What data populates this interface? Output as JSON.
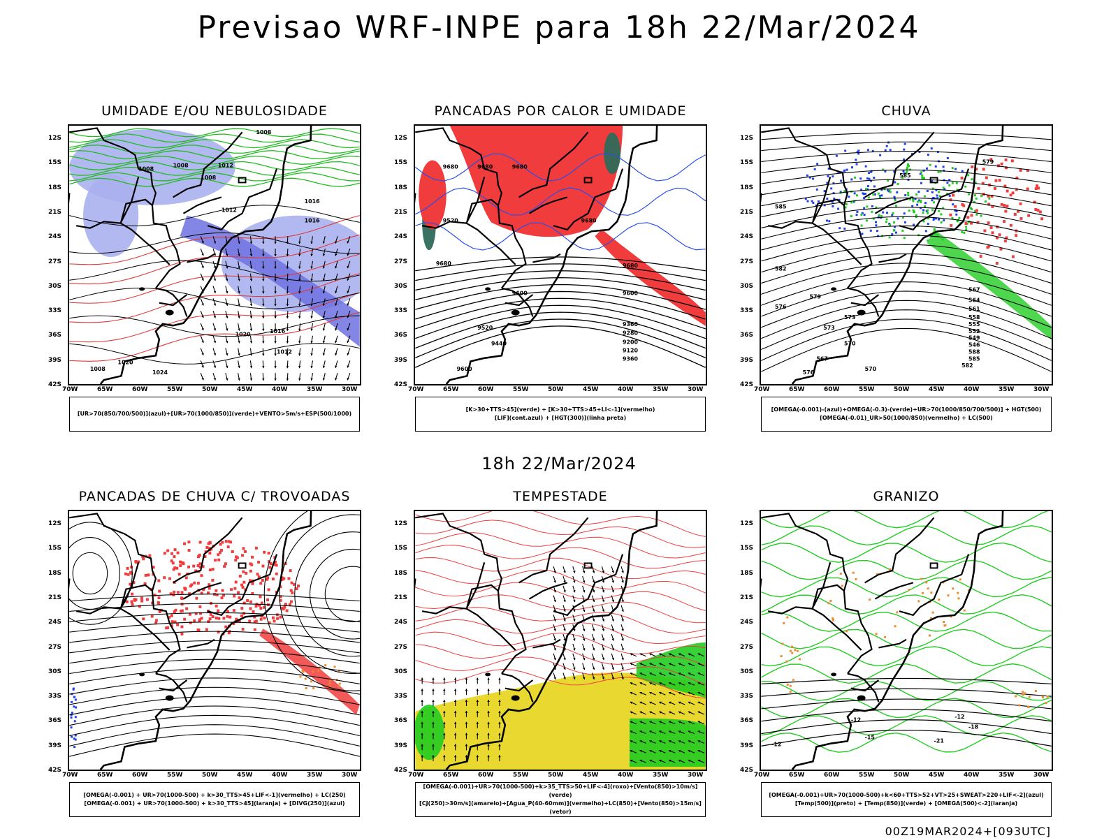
{
  "title": "Previsao WRF-INPE  para 18h 22/Mar/2024",
  "subtitle": "18h 22/Mar/2024",
  "footer": "00Z19MAR2024+[093UTC]",
  "axes": {
    "lat_labels": [
      "12S",
      "15S",
      "18S",
      "21S",
      "24S",
      "27S",
      "30S",
      "33S",
      "36S",
      "39S",
      "42S"
    ],
    "lon_labels": [
      "70W",
      "65W",
      "60W",
      "55W",
      "50W",
      "45W",
      "40W",
      "35W",
      "30W"
    ]
  },
  "panels": [
    {
      "id": "umidade",
      "title": "UMIDADE E/OU NEBULOSIDADE",
      "legend": [
        "[UR>70(850/700/500)](azul)+[UR>70(1000/850)](verde)+VENTO>5m/s+ESP(500/1000)"
      ],
      "contour_labels": [
        "1008",
        "1008",
        "1008",
        "1008",
        "1012",
        "1012",
        "1016",
        "1016",
        "1020",
        "1016",
        "1012",
        "1020",
        "1024",
        "1008"
      ],
      "colors": {
        "upper_humidity": "#aab0ee",
        "core": "#6d71e0",
        "low_humidity": "#22bb22",
        "thickness": "#e03a3a"
      }
    },
    {
      "id": "pancadas-calor",
      "title": "PANCADAS POR CALOR E UMIDADE",
      "legend": [
        "[K>30+TTS>45](verde) + [K>30+TTS>45+LI<-1](vermelho)",
        "[LIF](cont.azul) + [HGT(300)](linha preta)"
      ],
      "contour_labels": [
        "9680",
        "9680",
        "9680",
        "9680",
        "9680",
        "9600",
        "9600",
        "9520",
        "9440",
        "9360",
        "9280",
        "9200",
        "9120",
        "9360",
        "9600",
        "9520",
        "9680"
      ],
      "colors": {
        "unstable": "#f03c3c",
        "humid": "#2e6a5a",
        "lif": "#2a4ee8"
      }
    },
    {
      "id": "chuva",
      "title": "CHUVA",
      "legend": [
        "[OMEGA(-0.001)-(azul)+OMEGA(-0.3)-(verde)+UR>70(1000/850/700/500)] + HGT(500)",
        "[OMEGA(-0.01)_UR>50(1000/850)(vermelho) + LC(500)"
      ],
      "contour_labels": [
        "585",
        "585",
        "582",
        "579",
        "576",
        "573",
        "570",
        "567",
        "564",
        "561",
        "558",
        "555",
        "552",
        "549",
        "546",
        "588",
        "585",
        "582",
        "579",
        "576",
        "573",
        "570",
        "567"
      ],
      "colors": {
        "blue": "#2040e8",
        "green": "#22cc22",
        "red": "#f03c3c"
      }
    },
    {
      "id": "pancadas-trovoadas",
      "title": "PANCADAS DE CHUVA C/ TROVOADAS",
      "legend": [
        "[OMEGA(-0.001) + UR>70(1000-500) + k>30_TTS>45+LIF<-1](vermelho) + LC(250)",
        "[OMEGA(-0.001) + UR>70(1000-500) + k>30_TTS>45](laranja) + [DIVG(250)](azul)"
      ],
      "contour_labels": [],
      "colors": {
        "red": "#f03c3c",
        "orange": "#f08a2a",
        "blue": "#2040e8"
      }
    },
    {
      "id": "tempestade",
      "title": "TEMPESTADE",
      "legend": [
        "[OMEGA(-0.001)+UR>70(1000-500)+k>35_TTS>50+LIF<-4](roxo)+[Vento(850)>10m/s](verde)",
        "[CJ(250)>30m/s](amarelo)+[Agua_P(40-60mm)](vermelho)+LC(850)+[Vento(850)>15m/s](vetor)"
      ],
      "contour_labels": [],
      "colors": {
        "jet": "#e8d830",
        "water": "#f03c3c",
        "wind": "#22cc22"
      }
    },
    {
      "id": "granizo",
      "title": "GRANIZO",
      "legend": [
        "[OMEGA(-0.001)+UR>70(1000-500)+k<60+TTS>52+VT>25+SWEAT>220+LIF<-2](azul)",
        "[Temp(500)](preto) + [Temp(850)](verde) + [OMEGA(500)<-2](laranja)"
      ],
      "contour_labels": [
        "-12",
        "-12",
        "-15",
        "-18",
        "-21",
        "-12"
      ],
      "colors": {
        "temp850": "#22cc22",
        "omega": "#f08a2a"
      }
    }
  ]
}
